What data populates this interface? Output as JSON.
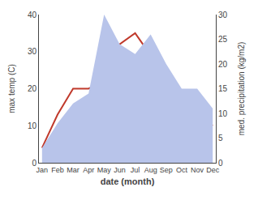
{
  "chart_data": {
    "type": "line",
    "categories": [
      "Jan",
      "Feb",
      "Mar",
      "Apr",
      "May",
      "Jun",
      "Jul",
      "Aug",
      "Sep",
      "Oct",
      "Nov",
      "Dec"
    ],
    "series": [
      {
        "type": "area",
        "axis": "y2",
        "color": "#b8c4ea",
        "values": [
          3,
          8,
          12,
          14,
          30,
          24,
          22,
          26,
          20,
          15,
          15,
          11
        ]
      },
      {
        "type": "line",
        "axis": "y",
        "color": "#c0392b",
        "values": [
          4,
          13,
          20,
          20,
          22,
          32,
          35,
          29,
          18,
          14,
          12,
          10
        ]
      }
    ],
    "xlabel": "date (month)",
    "ylabel": "max temp (C)",
    "y2label": "med. precipitation (kg/m2)",
    "ylim": [
      0,
      40
    ],
    "yticks": [
      0,
      10,
      20,
      30,
      40
    ],
    "y2lim": [
      0,
      30
    ],
    "y2ticks": [
      0,
      5,
      10,
      15,
      20,
      25,
      30
    ],
    "grid": false
  }
}
